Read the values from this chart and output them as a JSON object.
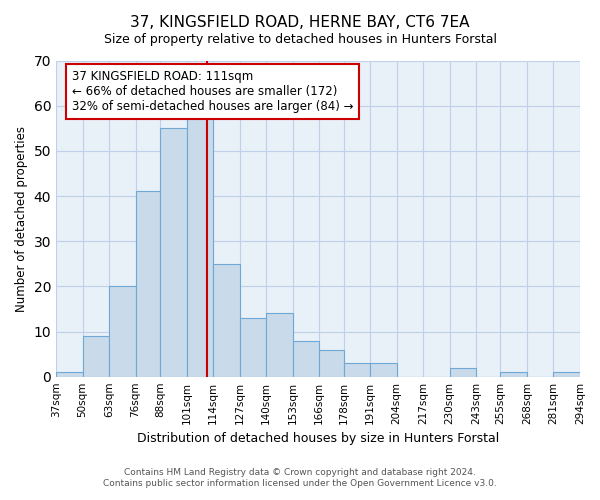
{
  "title_line1": "37, KINGSFIELD ROAD, HERNE BAY, CT6 7EA",
  "title_line2": "Size of property relative to detached houses in Hunters Forstal",
  "xlabel": "Distribution of detached houses by size in Hunters Forstal",
  "ylabel": "Number of detached properties",
  "bin_labels": [
    "37sqm",
    "50sqm",
    "63sqm",
    "76sqm",
    "88sqm",
    "101sqm",
    "114sqm",
    "127sqm",
    "140sqm",
    "153sqm",
    "166sqm",
    "178sqm",
    "191sqm",
    "204sqm",
    "217sqm",
    "230sqm",
    "243sqm",
    "255sqm",
    "268sqm",
    "281sqm",
    "294sqm"
  ],
  "bin_edges": [
    37,
    50,
    63,
    76,
    88,
    101,
    114,
    127,
    140,
    153,
    166,
    178,
    191,
    204,
    217,
    230,
    243,
    255,
    268,
    281,
    294
  ],
  "bar_heights": [
    1,
    9,
    20,
    41,
    55,
    58,
    25,
    13,
    14,
    8,
    6,
    3,
    3,
    0,
    0,
    2,
    0,
    1,
    0,
    1
  ],
  "bar_facecolor": "#c9daea",
  "bar_edgecolor": "#6fa8d4",
  "property_line_x": 111,
  "property_line_color": "#cc0000",
  "annotation_title": "37 KINGSFIELD ROAD: 111sqm",
  "annotation_line1": "← 66% of detached houses are smaller (172)",
  "annotation_line2": "32% of semi-detached houses are larger (84) →",
  "annotation_box_edgecolor": "#cc0000",
  "ylim": [
    0,
    70
  ],
  "yticks": [
    0,
    10,
    20,
    30,
    40,
    50,
    60,
    70
  ],
  "footer_line1": "Contains HM Land Registry data © Crown copyright and database right 2024.",
  "footer_line2": "Contains public sector information licensed under the Open Government Licence v3.0.",
  "background_color": "#ffffff",
  "grid_color": "#c0d0e8"
}
